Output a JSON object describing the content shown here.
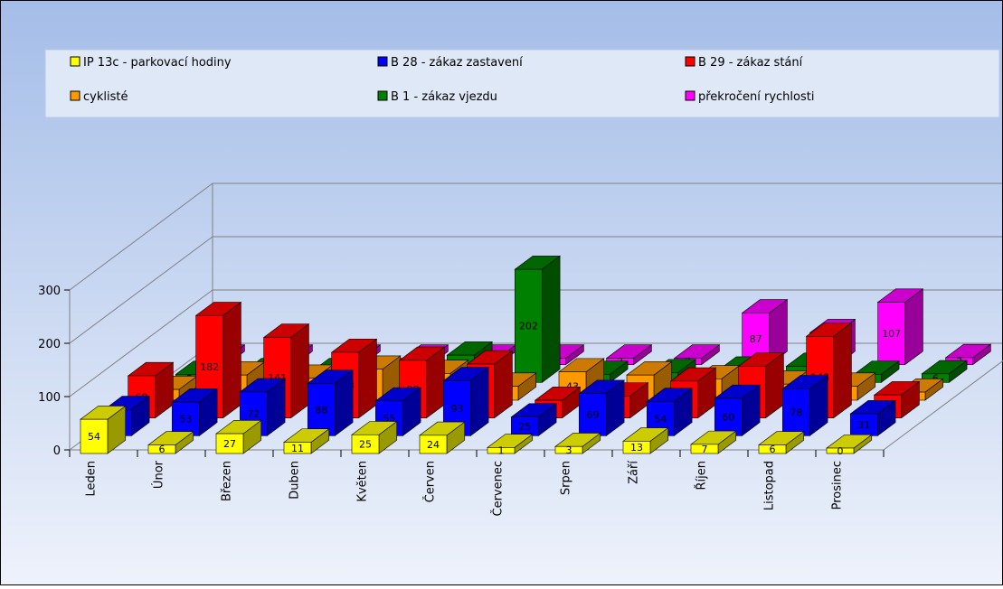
{
  "chart_data": {
    "type": "bar3d",
    "categories": [
      "Leden",
      "Únor",
      "Březen",
      "Duben",
      "Květen",
      "Červen",
      "Červenec",
      "Srpen",
      "Září",
      "Říjen",
      "Listopad",
      "Prosinec"
    ],
    "series": [
      {
        "name": "IP 13c - parkovací hodiny",
        "color": "#ffff00",
        "values": [
          54,
          6,
          27,
          11,
          25,
          24,
          1,
          3,
          13,
          7,
          6,
          0
        ]
      },
      {
        "name": "B 28 - zákaz zastavení",
        "color": "#0000ff",
        "values": [
          39,
          53,
          72,
          88,
          55,
          93,
          25,
          69,
          54,
          60,
          78,
          31
        ]
      },
      {
        "name": "B 29 - zákaz stání",
        "color": "#ff0000",
        "values": [
          69,
          182,
          141,
          113,
          98,
          91,
          23,
          31,
          59,
          87,
          143,
          33
        ]
      },
      {
        "name": "cyklisté",
        "color": "#ff9900",
        "values": [
          10,
          37,
          31,
          48,
          40,
          16,
          43,
          37,
          30,
          20,
          16,
          5
        ]
      },
      {
        "name": "B 1 - zákaz vjezdu",
        "color": "#008000",
        "values": [
          5,
          10,
          10,
          10,
          41,
          202,
          5,
          8,
          13,
          20,
          5,
          6
        ]
      },
      {
        "name": "překročení rychlosti",
        "color": "#ff00ff",
        "values": [
          2,
          2,
          2,
          2,
          2,
          2,
          2,
          2,
          87,
          50,
          107,
          3
        ]
      }
    ],
    "ylim": [
      0,
      300
    ],
    "yticks": [
      0,
      100,
      200,
      300
    ],
    "grid": true,
    "legend": "top"
  }
}
